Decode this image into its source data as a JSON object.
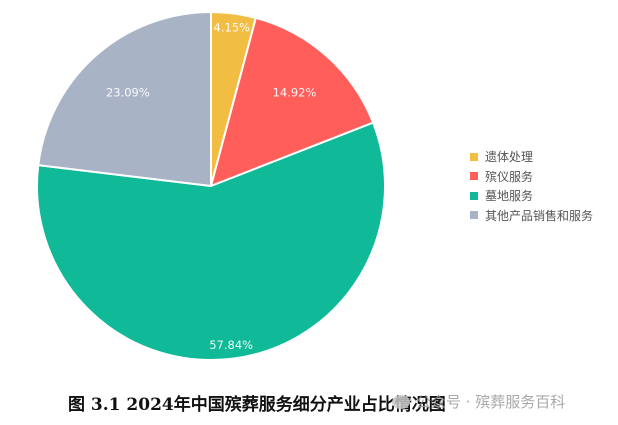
{
  "chart_data": {
    "type": "pie",
    "title": "图 3.1 2024年中国殡葬服务细分产业占比情况图",
    "categories": [
      "遗体处理",
      "殡仪服务",
      "墓地服务",
      "其他产品销售和服务"
    ],
    "values": [
      4.15,
      14.92,
      57.84,
      23.09
    ],
    "labels": [
      "4.15%",
      "14.92%",
      "57.84%",
      "23.09%"
    ],
    "colors": [
      "#F1BE43",
      "#FF5E5B",
      "#10B998",
      "#A8B3C6"
    ],
    "legend_position": "right",
    "start_angle": "12 o'clock, clockwise"
  },
  "legend": {
    "items": [
      {
        "label": "遗体处理",
        "color": "#F1BE43"
      },
      {
        "label": "殡仪服务",
        "color": "#FF5E5B"
      },
      {
        "label": "墓地服务",
        "color": "#10B998"
      },
      {
        "label": "其他产品销售和服务",
        "color": "#A8B3C6"
      }
    ]
  },
  "caption": "图 3.1 2024年中国殡葬服务细分产业占比情况图",
  "watermark": "公众号 · 殡葬服务百科"
}
